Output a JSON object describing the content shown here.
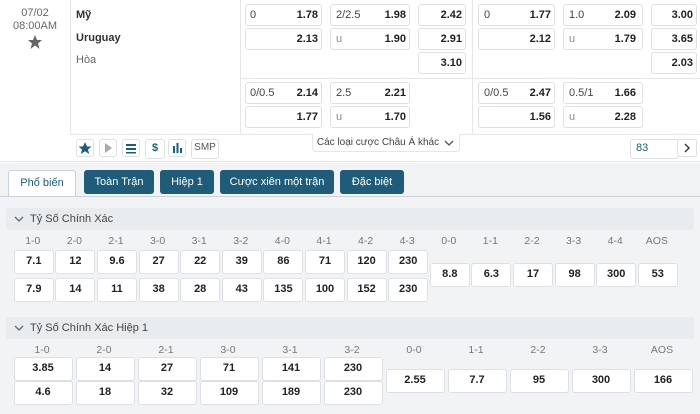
{
  "match": {
    "date": "07/02",
    "time": "08:00AM",
    "home": "Mỹ",
    "away": "Uruguay",
    "draw": "Hòa"
  },
  "odds_rows": [
    [
      "0",
      "1.78",
      "2/2.5",
      "1.98",
      "2.42",
      "0",
      "1.77",
      "1.0",
      "2.09",
      "3.00"
    ],
    [
      null,
      "2.13",
      "u",
      "1.90",
      "2.91",
      null,
      "2.12",
      "u",
      "1.79",
      "3.65"
    ],
    [
      null,
      null,
      null,
      null,
      "3.10",
      null,
      null,
      null,
      null,
      "2.03"
    ],
    [
      "0/0.5",
      "2.14",
      "2.5",
      "2.21",
      null,
      "0/0.5",
      "2.47",
      "0.5/1",
      "1.66",
      null
    ],
    [
      null,
      "1.77",
      "u",
      "1.70",
      null,
      null,
      "1.56",
      "u",
      "2.28",
      null
    ]
  ],
  "toolbar": {
    "currency": "$",
    "smp": "SMP",
    "more": "Các loại cược Châu Á khác",
    "count": "83"
  },
  "tabs": [
    "Phổ biến",
    "Toàn Trận",
    "Hiệp 1",
    "Cược xiên một trận",
    "Đặc biệt"
  ],
  "sections": [
    {
      "title": "Tỷ Số Chính Xác",
      "labels": [
        "1-0",
        "2-0",
        "2-1",
        "3-0",
        "3-1",
        "3-2",
        "4-0",
        "4-1",
        "4-2",
        "4-3",
        "0-0",
        "1-1",
        "2-2",
        "3-3",
        "4-4",
        "AOS"
      ],
      "home": [
        "7.1",
        "12",
        "9.6",
        "27",
        "22",
        "39",
        "86",
        "71",
        "120",
        "230"
      ],
      "away": [
        "7.9",
        "14",
        "11",
        "38",
        "28",
        "43",
        "135",
        "100",
        "152",
        "230"
      ],
      "draws": [
        "8.8",
        "6.3",
        "17",
        "98",
        "300",
        "53"
      ]
    },
    {
      "title": "Tỷ Số Chính Xác Hiệp 1",
      "labels": [
        "1-0",
        "2-0",
        "2-1",
        "3-0",
        "3-1",
        "3-2",
        "0-0",
        "1-1",
        "2-2",
        "3-3",
        "AOS"
      ],
      "home": [
        "3.85",
        "14",
        "27",
        "71",
        "141",
        "230"
      ],
      "away": [
        "4.6",
        "18",
        "32",
        "109",
        "189",
        "230"
      ],
      "draws": [
        "2.55",
        "7.7",
        "95",
        "300",
        "166"
      ]
    }
  ]
}
